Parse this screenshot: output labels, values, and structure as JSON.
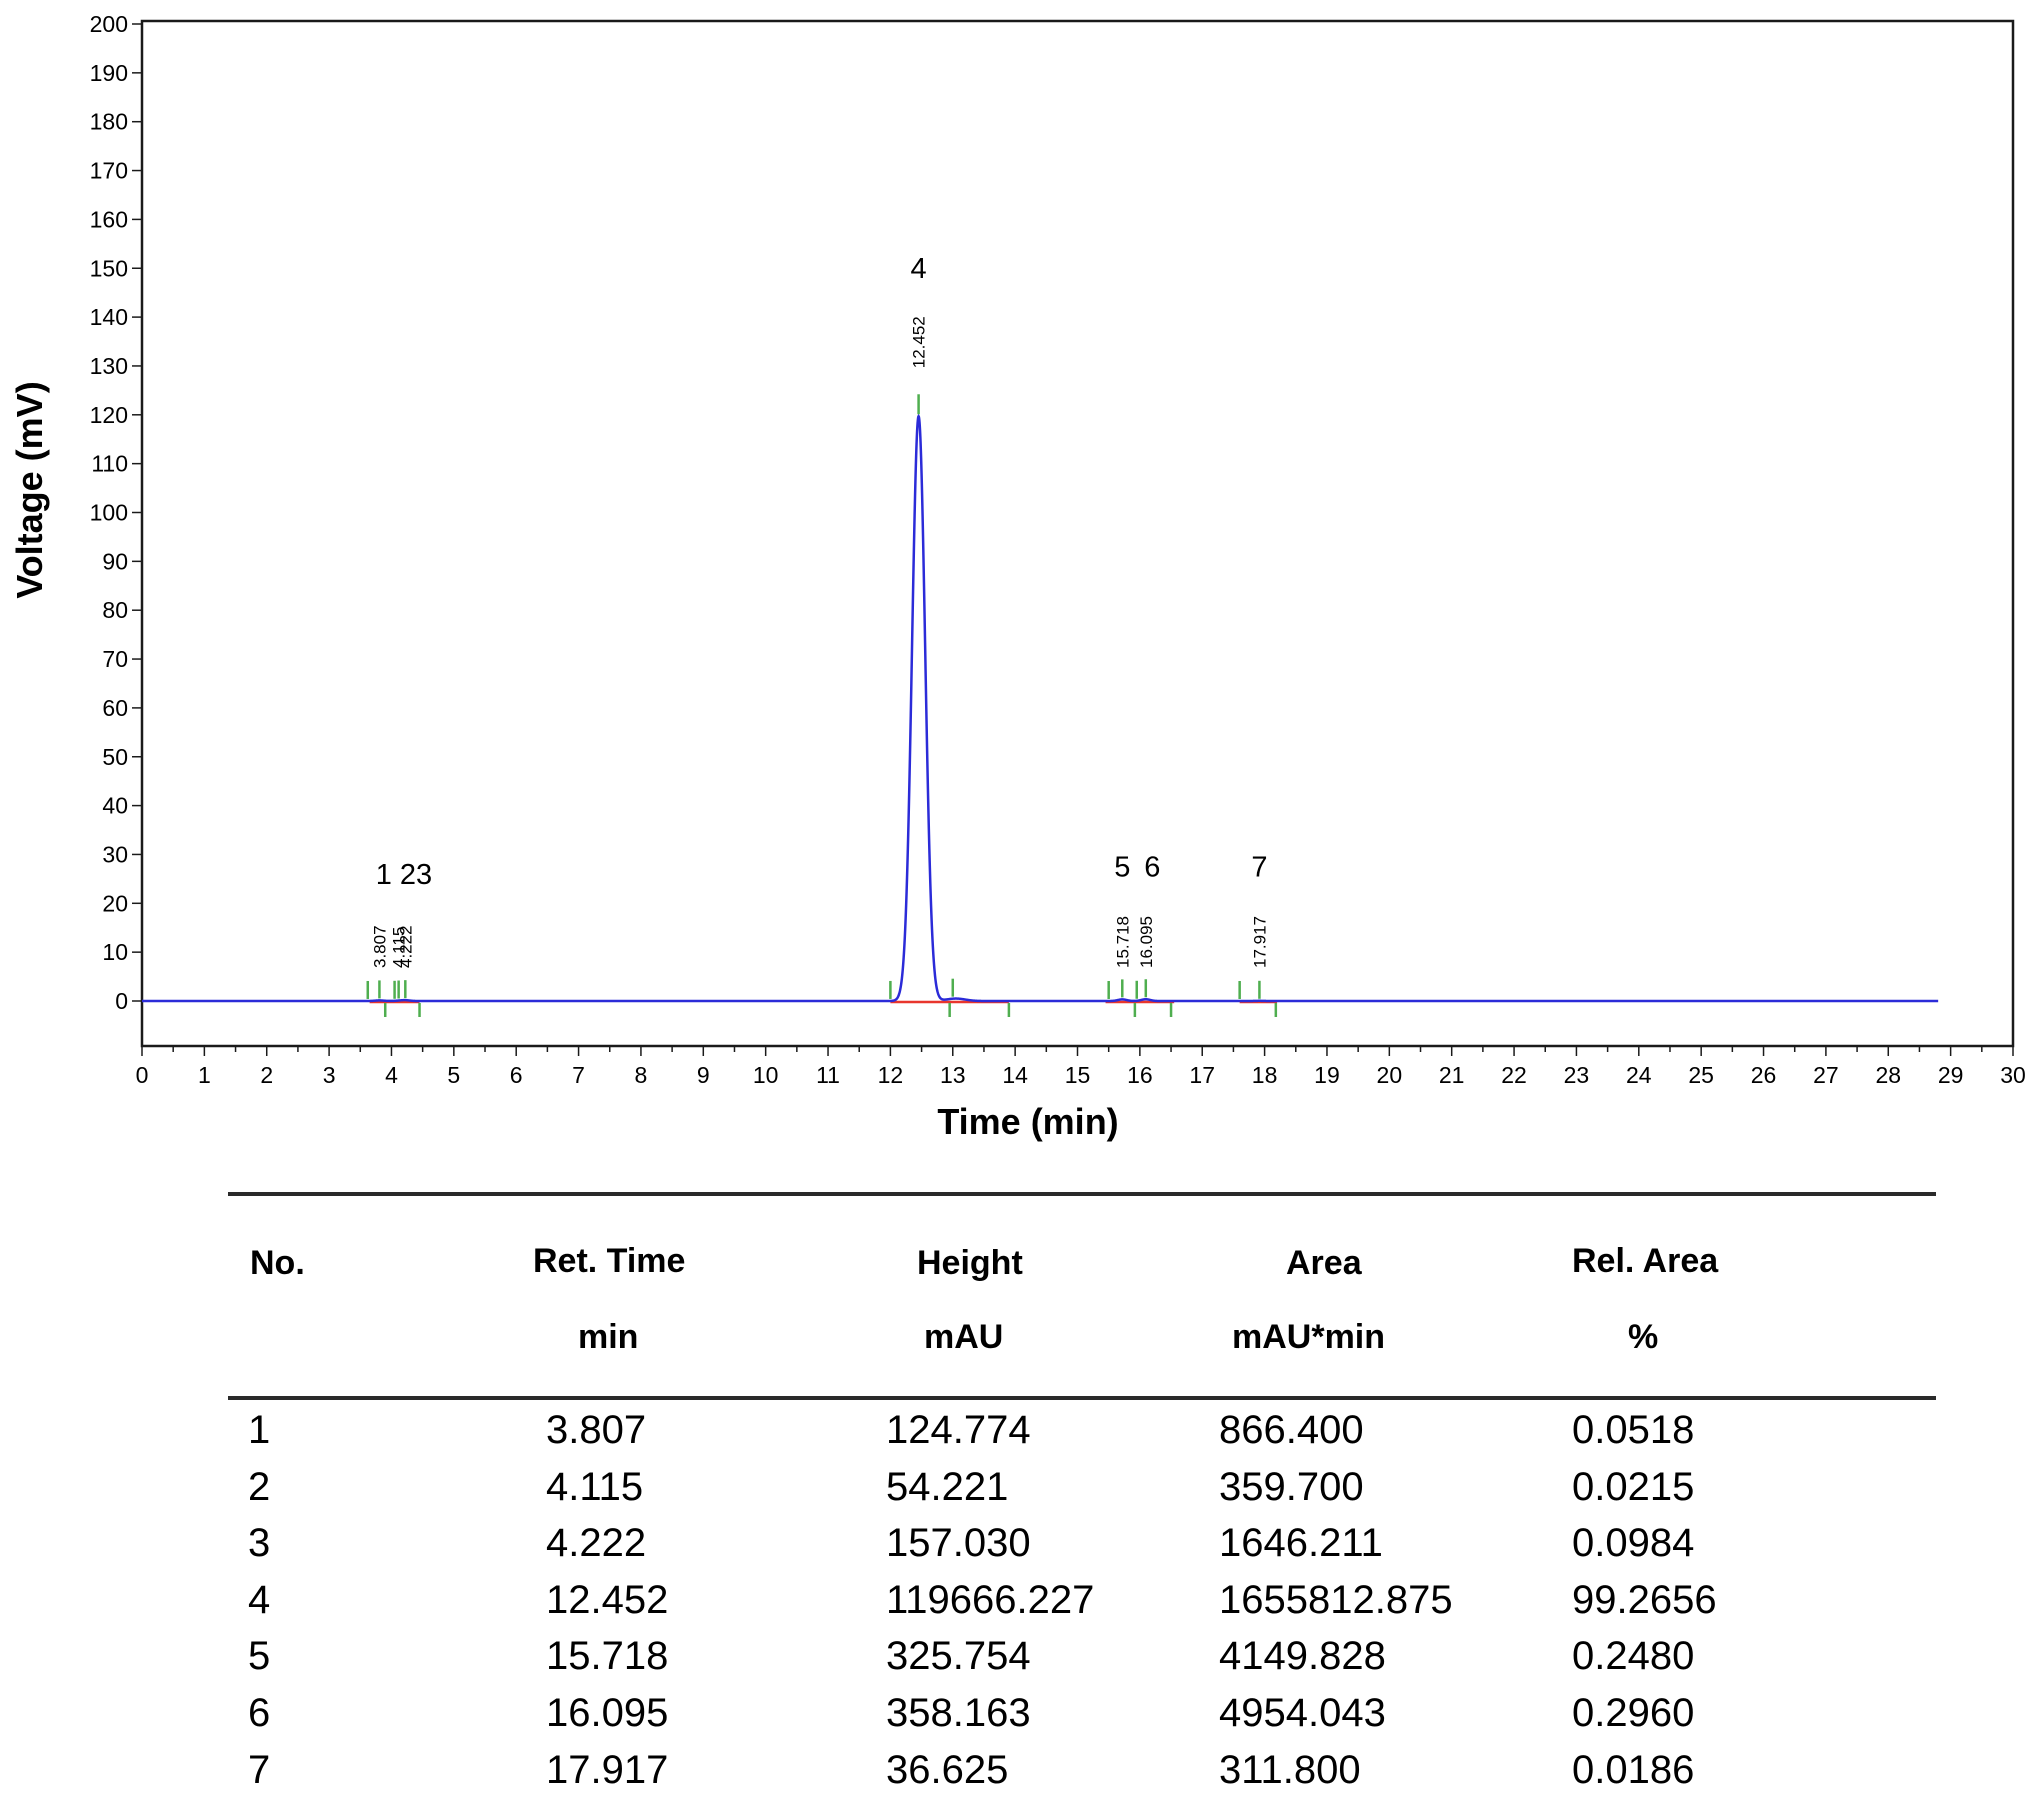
{
  "chart_data": {
    "type": "line",
    "xlabel": "Time (min)",
    "ylabel": "Voltage (mV)",
    "xlim": [
      0,
      30
    ],
    "ylim": [
      -10,
      200
    ],
    "x_ticks": [
      0,
      1,
      2,
      3,
      4,
      5,
      6,
      7,
      8,
      9,
      10,
      11,
      12,
      13,
      14,
      15,
      16,
      17,
      18,
      19,
      20,
      21,
      22,
      23,
      24,
      25,
      26,
      27,
      28,
      29,
      30
    ],
    "y_ticks": [
      0,
      10,
      20,
      30,
      40,
      50,
      60,
      70,
      80,
      90,
      100,
      110,
      120,
      130,
      140,
      150,
      160,
      170,
      180,
      190,
      200
    ],
    "grid": false,
    "line_color": "#2b2bd8",
    "baseline_color": "#e8362c",
    "marker_color": "#4fae4f",
    "peaks": [
      {
        "label": "1",
        "rt": 3.807,
        "rt_label": "3.807",
        "height_mv": 0.12
      },
      {
        "label": "2",
        "rt": 4.115,
        "rt_label": "4.115",
        "height_mv": 0.05
      },
      {
        "label": "3",
        "rt": 4.222,
        "rt_label": "4.222",
        "height_mv": 0.16
      },
      {
        "label": "4",
        "rt": 12.452,
        "rt_label": "12.452",
        "height_mv": 119.7
      },
      {
        "label": "5",
        "rt": 15.718,
        "rt_label": "15.718",
        "height_mv": 0.33
      },
      {
        "label": "6",
        "rt": 16.095,
        "rt_label": "16.095",
        "height_mv": 0.36
      },
      {
        "label": "7",
        "rt": 17.917,
        "rt_label": "17.917",
        "height_mv": 0.04
      }
    ],
    "peak_group_labels": [
      {
        "text": "1 23",
        "x": 4.2,
        "y": 24
      },
      {
        "text": "4",
        "x": 12.452,
        "y": 148
      },
      {
        "text": "5",
        "x": 15.718,
        "y": 25.5
      },
      {
        "text": "6",
        "x": 16.2,
        "y": 25.5
      },
      {
        "text": "7",
        "x": 17.917,
        "y": 25.5
      }
    ],
    "trace_end_min": 28.8
  },
  "table": {
    "headers": [
      {
        "line1": "No.",
        "line2": ""
      },
      {
        "line1": "Ret. Time",
        "line2": "min"
      },
      {
        "line1": "Height",
        "line2": "mAU"
      },
      {
        "line1": "Area",
        "line2": "mAU*min"
      },
      {
        "line1": "Rel. Area",
        "line2": "%"
      }
    ],
    "rows": [
      [
        "1",
        "3.807",
        "124.774",
        "866.400",
        "0.0518"
      ],
      [
        "2",
        "4.115",
        "54.221",
        "359.700",
        "0.0215"
      ],
      [
        "3",
        "4.222",
        "157.030",
        "1646.211",
        "0.0984"
      ],
      [
        "4",
        "12.452",
        "119666.227",
        "1655812.875",
        "99.2656"
      ],
      [
        "5",
        "15.718",
        "325.754",
        "4149.828",
        "0.2480"
      ],
      [
        "6",
        "16.095",
        "358.163",
        "4954.043",
        "0.2960"
      ],
      [
        "7",
        "17.917",
        "36.625",
        "311.800",
        "0.0186"
      ]
    ]
  }
}
